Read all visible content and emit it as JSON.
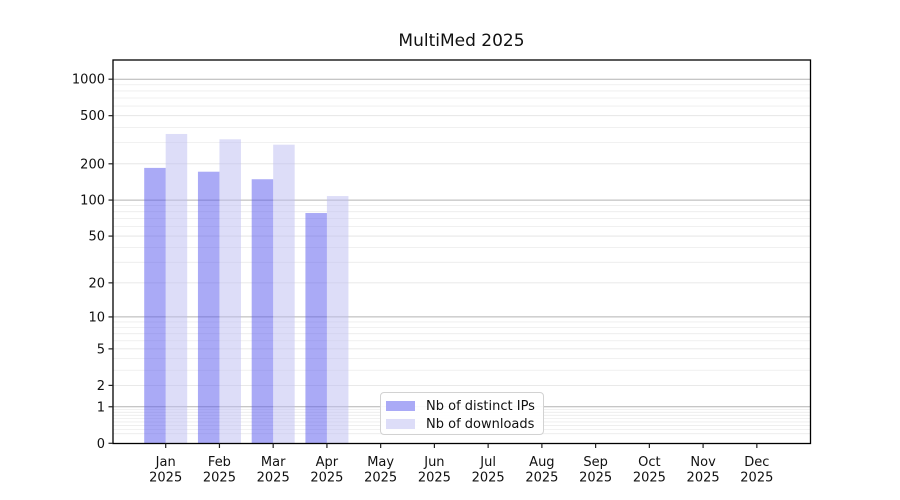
{
  "page": {
    "background": "#ffffff"
  },
  "chart_data": {
    "type": "bar",
    "title": "MultiMed 2025",
    "categories": [
      "Jan",
      "Feb",
      "Mar",
      "Apr",
      "May",
      "Jun",
      "Jul",
      "Aug",
      "Sep",
      "Oct",
      "Nov",
      "Dec"
    ],
    "year_label": "2025",
    "series": [
      {
        "name": "Nb of distinct IPs",
        "color": "#5555ee",
        "fill_opacity": 0.5,
        "apparent_color": "#aaaaf6",
        "values": [
          185,
          172,
          149,
          78,
          null,
          null,
          null,
          null,
          null,
          null,
          null,
          null
        ]
      },
      {
        "name": "Nb of downloads",
        "color": "#bbbbf2",
        "fill_opacity": 0.5,
        "apparent_color": "#ddddf8",
        "values": [
          353,
          319,
          288,
          108,
          null,
          null,
          null,
          null,
          null,
          null,
          null,
          null
        ]
      }
    ],
    "yscale": "log1p",
    "yticks": [
      0,
      1,
      2,
      5,
      10,
      20,
      50,
      100,
      200,
      500,
      1000
    ],
    "ylim": [
      0,
      1440
    ],
    "xlabel": "",
    "ylabel": "",
    "grid": true,
    "grid_major_color": "#b3b3b3",
    "grid_minor_color": "#ececec",
    "legend": {
      "position": "inside-bottom-center"
    }
  }
}
